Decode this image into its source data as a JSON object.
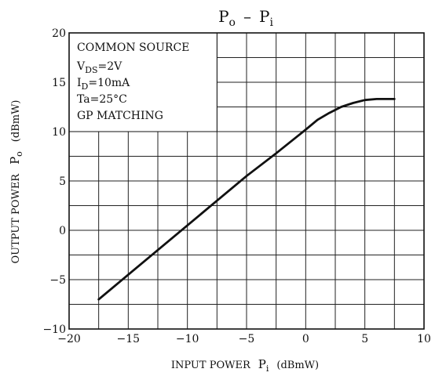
{
  "chart_data": {
    "type": "line",
    "title": "Pₒ – Pᵢ",
    "title_parts": {
      "base1": "P",
      "sub1": "o",
      "dash": "–",
      "base2": "P",
      "sub2": "i"
    },
    "xlabel": "INPUT POWER",
    "xlabel_symbol": {
      "base": "P",
      "sub": "i"
    },
    "xlabel_unit": "(dBmW)",
    "ylabel": "OUTPUT POWER",
    "ylabel_symbol": {
      "base": "P",
      "sub": "o"
    },
    "ylabel_unit": "(dBmW)",
    "xlim": [
      -20,
      10
    ],
    "ylim": [
      -10,
      20
    ],
    "x_ticks": [
      -20,
      -15,
      -10,
      -5,
      0,
      5,
      10
    ],
    "x_tick_labels": [
      "−20",
      "−15",
      "−10",
      "−5",
      "0",
      "5",
      "10"
    ],
    "y_ticks": [
      -10,
      -5,
      0,
      5,
      10,
      15,
      20
    ],
    "y_tick_labels": [
      "−10",
      "−5",
      "0",
      "5",
      "10",
      "15",
      "20"
    ],
    "grid": true,
    "grid_x_step": 2.5,
    "grid_y_step": 2.5,
    "conditions_box": {
      "line1": "COMMON SOURCE",
      "vds_base": "V",
      "vds_sub": "DS",
      "vds_value": "=2V",
      "id_base": "I",
      "id_sub": "D",
      "id_value": "=10mA",
      "ta": "Ta=25°C",
      "matching": "GP MATCHING"
    },
    "series": [
      {
        "x": [
          -17.5,
          -15,
          -12.5,
          -10,
          -7.5,
          -5,
          -2.5,
          0,
          1,
          2,
          3,
          4,
          5,
          6,
          7.5
        ],
        "y": [
          -7.0,
          -4.5,
          -2.0,
          0.5,
          3.0,
          5.5,
          7.8,
          10.2,
          11.2,
          11.9,
          12.5,
          12.9,
          13.2,
          13.3,
          13.3
        ]
      }
    ],
    "line_color": "#111111"
  }
}
